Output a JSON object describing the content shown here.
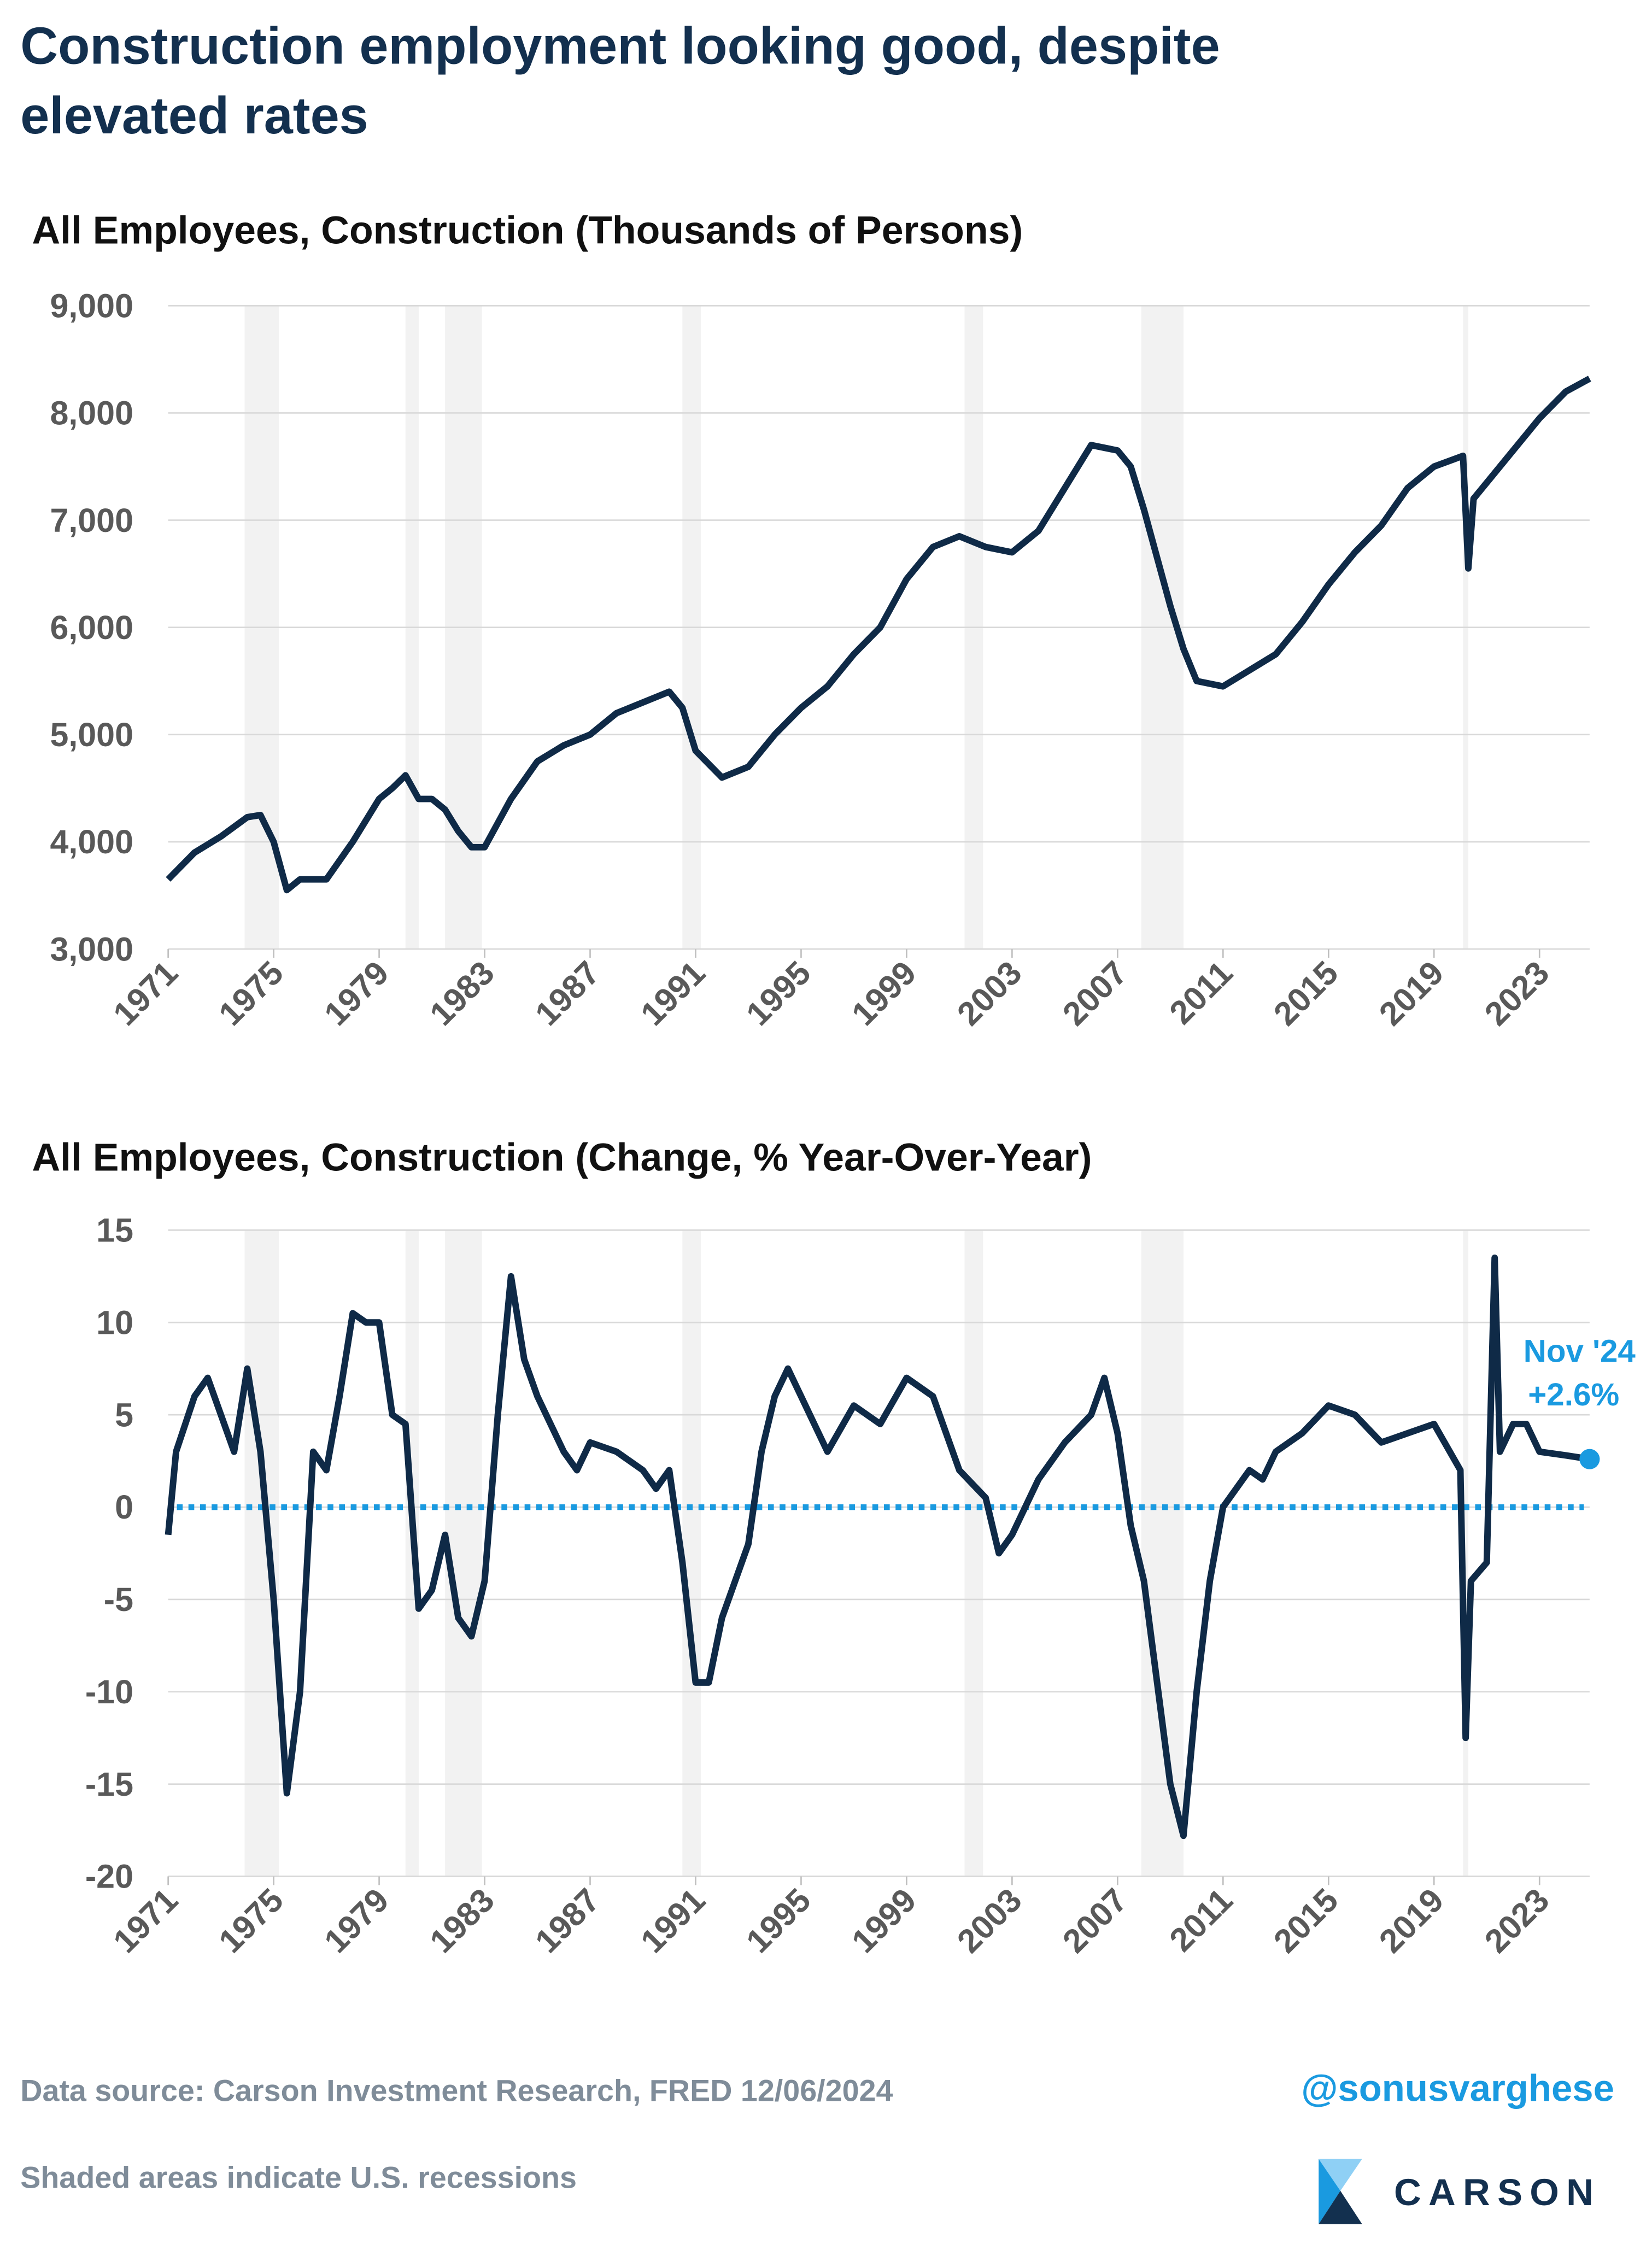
{
  "title": [
    "Construction employment looking good, despite",
    "elevated rates"
  ],
  "source": "Data source: Carson Investment Research, FRED   12/06/2024",
  "handle": "@sonusvarghese",
  "note": "Shaded areas indicate U.S. recessions",
  "logo": "CARSON",
  "chart_data": [
    {
      "type": "line",
      "title": "All Employees, Construction (Thousands of Persons)",
      "xlim": [
        1971,
        2024.9
      ],
      "xticks": [
        1971,
        1975,
        1979,
        1983,
        1987,
        1991,
        1995,
        1999,
        2003,
        2007,
        2011,
        2015,
        2019,
        2023
      ],
      "ylim": [
        3000,
        9000
      ],
      "yticks": [
        {
          "value": 3000,
          "label": "3,000"
        },
        {
          "value": 4000,
          "label": "4,000"
        },
        {
          "value": 5000,
          "label": "5,000"
        },
        {
          "value": 6000,
          "label": "6,000"
        },
        {
          "value": 7000,
          "label": "7,000"
        },
        {
          "value": 8000,
          "label": "8,000"
        },
        {
          "value": 9000,
          "label": "9,000"
        }
      ],
      "grid": true,
      "recessions": [
        [
          1973.9,
          1975.2
        ],
        [
          1980.0,
          1980.5
        ],
        [
          1981.5,
          1982.9
        ],
        [
          1990.5,
          1991.2
        ],
        [
          2001.2,
          2001.9
        ],
        [
          2007.9,
          2009.5
        ],
        [
          2020.1,
          2020.3
        ]
      ],
      "recession_color": "#f2f2f2",
      "series": [
        {
          "name": "All Employees, Construction",
          "color": "#0f2a47",
          "x": [
            1971,
            1972,
            1973,
            1974,
            1974.5,
            1975,
            1975.5,
            1976,
            1977,
            1978,
            1979,
            1979.5,
            1980,
            1980.5,
            1981,
            1981.5,
            1982,
            1982.5,
            1983,
            1984,
            1985,
            1986,
            1987,
            1988,
            1989,
            1990,
            1990.5,
            1991,
            1992,
            1993,
            1994,
            1995,
            1996,
            1997,
            1998,
            1999,
            2000,
            2001,
            2002,
            2003,
            2004,
            2005,
            2006,
            2007,
            2007.5,
            2008,
            2009,
            2009.5,
            2010,
            2011,
            2012,
            2013,
            2014,
            2015,
            2016,
            2017,
            2018,
            2019,
            2020.1,
            2020.3,
            2020.5,
            2021,
            2022,
            2023,
            2024,
            2024.9
          ],
          "values": [
            3650,
            3900,
            4050,
            4230,
            4250,
            4000,
            3550,
            3650,
            3650,
            4000,
            4400,
            4500,
            4620,
            4400,
            4400,
            4300,
            4100,
            3950,
            3950,
            4400,
            4750,
            4900,
            5000,
            5200,
            5300,
            5400,
            5250,
            4850,
            4600,
            4700,
            5000,
            5250,
            5450,
            5750,
            6000,
            6450,
            6750,
            6850,
            6750,
            6700,
            6900,
            7300,
            7700,
            7650,
            7500,
            7100,
            6200,
            5800,
            5500,
            5450,
            5600,
            5750,
            6050,
            6400,
            6700,
            6950,
            7300,
            7500,
            7600,
            6550,
            7200,
            7350,
            7650,
            7950,
            8200,
            8320
          ]
        }
      ]
    },
    {
      "type": "line",
      "title": "All Employees, Construction (Change, % Year-Over-Year)",
      "xlim": [
        1971,
        2024.9
      ],
      "xticks": [
        1971,
        1975,
        1979,
        1983,
        1987,
        1991,
        1995,
        1999,
        2003,
        2007,
        2011,
        2015,
        2019,
        2023
      ],
      "ylim": [
        -20,
        15
      ],
      "yticks": [
        -20,
        -15,
        -10,
        -5,
        0,
        5,
        10,
        15
      ],
      "grid": true,
      "recessions": [
        [
          1973.9,
          1975.2
        ],
        [
          1980.0,
          1980.5
        ],
        [
          1981.5,
          1982.9
        ],
        [
          1990.5,
          1991.2
        ],
        [
          2001.2,
          2001.9
        ],
        [
          2007.9,
          2009.5
        ],
        [
          2020.1,
          2020.3
        ]
      ],
      "recession_color": "#f2f2f2",
      "reference_line": 0,
      "reference_color": "#1a9ae0",
      "annotation": [
        "Nov '24",
        "+2.6%"
      ],
      "annotation_color": "#1a9ae0",
      "series": [
        {
          "name": "Change, % Year-Over-Year",
          "color": "#0f2a47",
          "x": [
            1971,
            1971.3,
            1972,
            1972.5,
            1973,
            1973.5,
            1974,
            1974.5,
            1975,
            1975.5,
            1976,
            1976.5,
            1977,
            1977.5,
            1978,
            1978.5,
            1979,
            1979.5,
            1980,
            1980.5,
            1981,
            1981.5,
            1982,
            1982.5,
            1983,
            1983.5,
            1984,
            1984.5,
            1985,
            1986,
            1986.5,
            1987,
            1988,
            1989,
            1989.5,
            1990,
            1990.5,
            1991,
            1991.5,
            1992,
            1993,
            1993.5,
            1994,
            1994.5,
            1995,
            1996,
            1997,
            1998,
            1999,
            2000,
            2001,
            2002,
            2002.5,
            2003,
            2004,
            2005,
            2006,
            2006.5,
            2007,
            2007.5,
            2008,
            2009,
            2009.5,
            2010,
            2010.5,
            2011,
            2012,
            2012.5,
            2013,
            2014,
            2015,
            2016,
            2017,
            2018,
            2019,
            2020,
            2020.2,
            2020.4,
            2021,
            2021.3,
            2021.5,
            2022,
            2022.5,
            2023,
            2024,
            2024.9
          ],
          "values": [
            -1.5,
            3,
            6,
            7,
            5,
            3,
            7.5,
            3,
            -5,
            -15.5,
            -10,
            3,
            2,
            6,
            10.5,
            10,
            10,
            5,
            4.5,
            -5.5,
            -4.5,
            -1.5,
            -6,
            -7,
            -4,
            5,
            12.5,
            8,
            6,
            3,
            2,
            3.5,
            3,
            2,
            1,
            2,
            -3,
            -9.5,
            -9.5,
            -6,
            -2,
            3,
            6,
            7.5,
            6,
            3,
            5.5,
            4.5,
            7,
            6,
            2,
            0.5,
            -2.5,
            -1.5,
            1.5,
            3.5,
            5,
            7,
            4,
            -1,
            -4,
            -15,
            -17.8,
            -10,
            -4,
            0,
            2,
            1.5,
            3,
            4,
            5.5,
            5,
            3.5,
            4,
            4.5,
            2,
            -12.5,
            -4,
            -3,
            13.5,
            3,
            4.5,
            4.5,
            3,
            2.8,
            2.6
          ]
        }
      ]
    }
  ]
}
